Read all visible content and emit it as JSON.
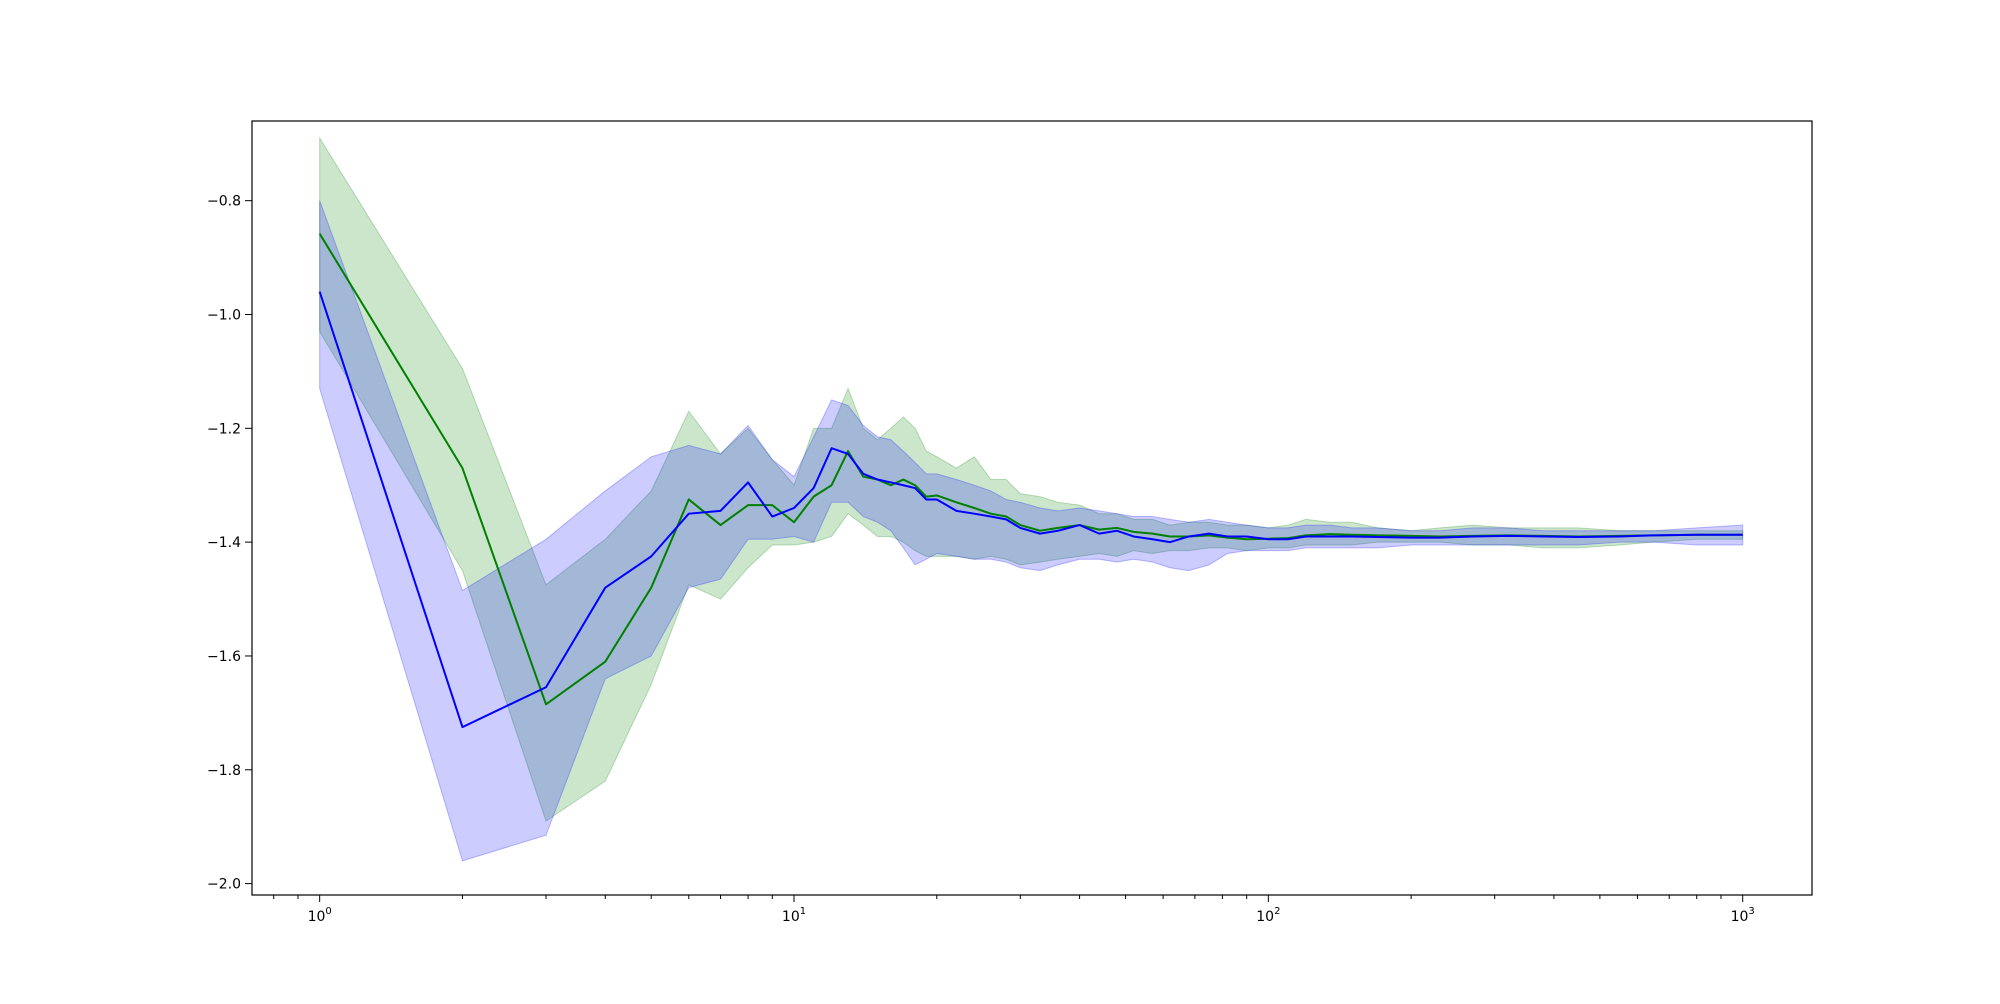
{
  "chart_data": {
    "type": "line",
    "title": "",
    "xlabel": "",
    "ylabel": "",
    "xscale": "log",
    "xlim": [
      0.72,
      1400
    ],
    "ylim": [
      -2.02,
      -0.66
    ],
    "grid": false,
    "legend": "none",
    "x_ticks": [
      {
        "value": 1,
        "label": "10^0",
        "base": "10",
        "exp": "0"
      },
      {
        "value": 10,
        "label": "10^1",
        "base": "10",
        "exp": "1"
      },
      {
        "value": 100,
        "label": "10^2",
        "base": "10",
        "exp": "2"
      },
      {
        "value": 1000,
        "label": "10^3",
        "base": "10",
        "exp": "3"
      }
    ],
    "y_ticks": [
      {
        "value": -0.8,
        "label": "−0.8"
      },
      {
        "value": -1.0,
        "label": "−1.0"
      },
      {
        "value": -1.2,
        "label": "−1.2"
      },
      {
        "value": -1.4,
        "label": "−1.4"
      },
      {
        "value": -1.6,
        "label": "−1.6"
      },
      {
        "value": -1.8,
        "label": "−1.8"
      },
      {
        "value": -2.0,
        "label": "−2.0"
      }
    ],
    "series": [
      {
        "color": "#008000",
        "band_color": "#008000",
        "band_opacity": 0.2,
        "x": [
          1,
          2,
          3,
          4,
          5,
          6,
          7,
          8,
          9,
          10,
          11,
          12,
          13,
          14,
          15,
          16,
          17,
          18,
          19,
          20,
          22,
          24,
          26,
          28,
          30,
          33,
          36,
          40,
          44,
          48,
          52,
          57,
          62,
          68,
          75,
          82,
          90,
          100,
          110,
          120,
          135,
          150,
          170,
          200,
          230,
          270,
          320,
          380,
          450,
          550,
          650,
          800,
          1000
        ],
        "values": [
          -0.858,
          -1.27,
          -1.685,
          -1.61,
          -1.48,
          -1.325,
          -1.37,
          -1.335,
          -1.335,
          -1.365,
          -1.32,
          -1.3,
          -1.24,
          -1.285,
          -1.29,
          -1.3,
          -1.29,
          -1.3,
          -1.32,
          -1.318,
          -1.33,
          -1.34,
          -1.35,
          -1.355,
          -1.37,
          -1.38,
          -1.375,
          -1.37,
          -1.378,
          -1.375,
          -1.382,
          -1.385,
          -1.39,
          -1.39,
          -1.388,
          -1.392,
          -1.395,
          -1.394,
          -1.393,
          -1.388,
          -1.386,
          -1.387,
          -1.388,
          -1.389,
          -1.39,
          -1.389,
          -1.388,
          -1.389,
          -1.39,
          -1.389,
          -1.388,
          -1.387,
          -1.387
        ],
        "upper": [
          -0.69,
          -1.095,
          -1.475,
          -1.395,
          -1.31,
          -1.17,
          -1.245,
          -1.2,
          -1.255,
          -1.3,
          -1.2,
          -1.2,
          -1.13,
          -1.2,
          -1.22,
          -1.2,
          -1.18,
          -1.2,
          -1.24,
          -1.25,
          -1.27,
          -1.25,
          -1.29,
          -1.29,
          -1.315,
          -1.32,
          -1.33,
          -1.335,
          -1.35,
          -1.35,
          -1.36,
          -1.36,
          -1.37,
          -1.365,
          -1.365,
          -1.37,
          -1.37,
          -1.375,
          -1.37,
          -1.36,
          -1.365,
          -1.365,
          -1.375,
          -1.38,
          -1.375,
          -1.37,
          -1.375,
          -1.375,
          -1.375,
          -1.38,
          -1.38,
          -1.38,
          -1.38
        ],
        "lower": [
          -1.03,
          -1.45,
          -1.89,
          -1.82,
          -1.65,
          -1.475,
          -1.5,
          -1.445,
          -1.405,
          -1.405,
          -1.4,
          -1.39,
          -1.35,
          -1.37,
          -1.39,
          -1.39,
          -1.4,
          -1.415,
          -1.425,
          -1.425,
          -1.425,
          -1.43,
          -1.425,
          -1.43,
          -1.44,
          -1.435,
          -1.43,
          -1.425,
          -1.42,
          -1.425,
          -1.415,
          -1.42,
          -1.415,
          -1.415,
          -1.41,
          -1.41,
          -1.415,
          -1.41,
          -1.41,
          -1.405,
          -1.405,
          -1.405,
          -1.4,
          -1.4,
          -1.4,
          -1.405,
          -1.405,
          -1.41,
          -1.41,
          -1.405,
          -1.4,
          -1.395,
          -1.395
        ]
      },
      {
        "color": "#0000ff",
        "band_color": "#0000ff",
        "band_opacity": 0.2,
        "x": [
          1,
          2,
          3,
          4,
          5,
          6,
          7,
          8,
          9,
          10,
          11,
          12,
          13,
          14,
          15,
          16,
          17,
          18,
          19,
          20,
          22,
          24,
          26,
          28,
          30,
          33,
          36,
          40,
          44,
          48,
          52,
          57,
          62,
          68,
          75,
          82,
          90,
          100,
          110,
          120,
          135,
          150,
          170,
          200,
          230,
          270,
          320,
          380,
          450,
          550,
          650,
          800,
          1000
        ],
        "values": [
          -0.96,
          -1.725,
          -1.655,
          -1.48,
          -1.425,
          -1.35,
          -1.345,
          -1.295,
          -1.355,
          -1.34,
          -1.305,
          -1.235,
          -1.245,
          -1.28,
          -1.29,
          -1.295,
          -1.3,
          -1.305,
          -1.325,
          -1.325,
          -1.345,
          -1.35,
          -1.355,
          -1.36,
          -1.375,
          -1.385,
          -1.38,
          -1.37,
          -1.385,
          -1.38,
          -1.39,
          -1.395,
          -1.4,
          -1.39,
          -1.385,
          -1.39,
          -1.39,
          -1.395,
          -1.395,
          -1.39,
          -1.39,
          -1.39,
          -1.391,
          -1.392,
          -1.392,
          -1.39,
          -1.389,
          -1.39,
          -1.391,
          -1.39,
          -1.388,
          -1.387,
          -1.387
        ],
        "upper": [
          -0.8,
          -1.485,
          -1.395,
          -1.31,
          -1.25,
          -1.23,
          -1.245,
          -1.195,
          -1.255,
          -1.285,
          -1.215,
          -1.15,
          -1.16,
          -1.195,
          -1.215,
          -1.22,
          -1.24,
          -1.26,
          -1.28,
          -1.28,
          -1.29,
          -1.3,
          -1.31,
          -1.325,
          -1.33,
          -1.34,
          -1.345,
          -1.34,
          -1.345,
          -1.35,
          -1.355,
          -1.355,
          -1.36,
          -1.365,
          -1.36,
          -1.365,
          -1.37,
          -1.375,
          -1.375,
          -1.37,
          -1.37,
          -1.375,
          -1.375,
          -1.38,
          -1.38,
          -1.375,
          -1.375,
          -1.38,
          -1.38,
          -1.38,
          -1.38,
          -1.375,
          -1.37
        ],
        "lower": [
          -1.13,
          -1.96,
          -1.915,
          -1.64,
          -1.6,
          -1.48,
          -1.465,
          -1.395,
          -1.395,
          -1.39,
          -1.4,
          -1.33,
          -1.33,
          -1.355,
          -1.365,
          -1.38,
          -1.41,
          -1.44,
          -1.43,
          -1.42,
          -1.425,
          -1.43,
          -1.43,
          -1.435,
          -1.445,
          -1.45,
          -1.44,
          -1.43,
          -1.43,
          -1.435,
          -1.43,
          -1.435,
          -1.445,
          -1.45,
          -1.44,
          -1.42,
          -1.415,
          -1.415,
          -1.415,
          -1.41,
          -1.41,
          -1.41,
          -1.41,
          -1.405,
          -1.405,
          -1.405,
          -1.405,
          -1.405,
          -1.405,
          -1.4,
          -1.4,
          -1.405,
          -1.405
        ]
      }
    ]
  }
}
